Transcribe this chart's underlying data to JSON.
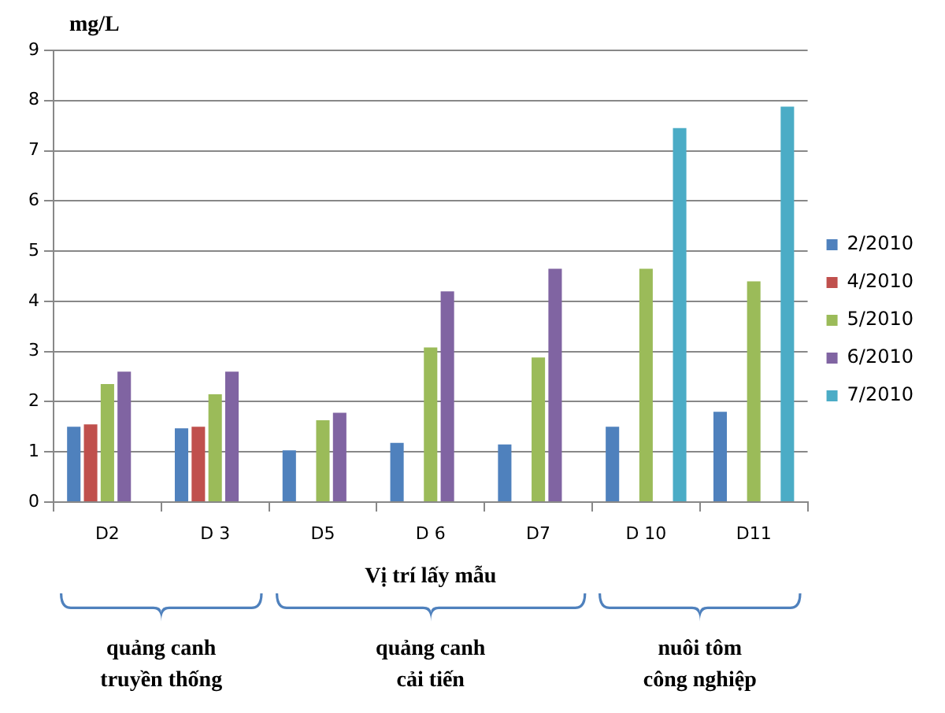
{
  "chart_data": {
    "type": "bar",
    "ylabel": "mg/L",
    "xlabel": "Vị trí lấy mẫu",
    "categories": [
      "D2",
      "D 3",
      "D5",
      "D 6",
      "D7",
      "D 10",
      "D11"
    ],
    "series": [
      {
        "name": "2/2010",
        "color": "#4f81bd",
        "values": [
          1.5,
          1.47,
          1.03,
          1.18,
          1.15,
          1.5,
          1.8
        ]
      },
      {
        "name": "4/2010",
        "color": "#c0504d",
        "values": [
          1.55,
          1.5,
          null,
          null,
          null,
          null,
          null
        ]
      },
      {
        "name": "5/2010",
        "color": "#9bbb59",
        "values": [
          2.35,
          2.15,
          1.63,
          3.08,
          2.88,
          4.65,
          4.4
        ]
      },
      {
        "name": "6/2010",
        "color": "#8064a2",
        "values": [
          2.6,
          2.6,
          1.78,
          4.2,
          4.65,
          null,
          null
        ]
      },
      {
        "name": "7/2010",
        "color": "#4bacc6",
        "values": [
          null,
          null,
          null,
          null,
          null,
          7.45,
          7.88
        ]
      }
    ],
    "ylim": [
      0,
      9
    ],
    "yticks": [
      0,
      1,
      2,
      3,
      4,
      5,
      6,
      7,
      8,
      9
    ],
    "grid": "y",
    "legend": "right",
    "annotations": [
      "quảng canh\ntruyền thống",
      "quảng canh\ncải tiến",
      "nuôi tôm\ncông nghiệp"
    ]
  }
}
